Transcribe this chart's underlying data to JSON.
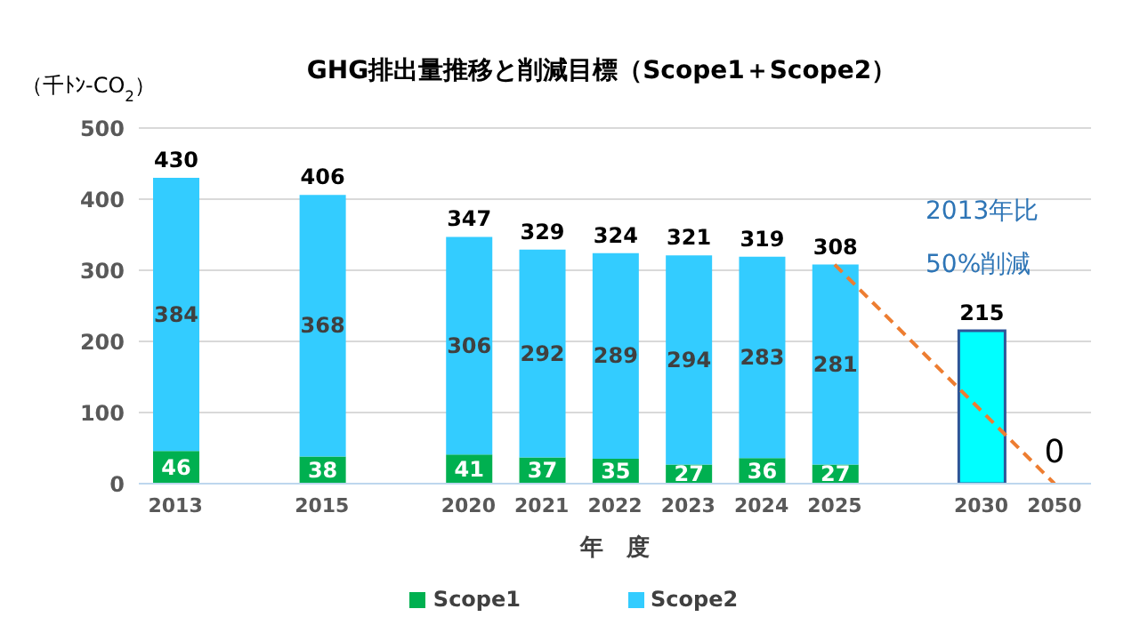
{
  "chart_data": {
    "type": "bar",
    "title": "GHG排出量推移と削減目標（Scope1＋Scope2）",
    "ylabel": "（千ﾄﾝ-CO$_{2}$）",
    "xlabel": "年　度",
    "categories": [
      "2013",
      null,
      "2015",
      null,
      "2020",
      "2021",
      "2022",
      "2023",
      "2024",
      "2025",
      null,
      "2030",
      "2050"
    ],
    "stacked": true,
    "series": [
      {
        "name": "Scope1",
        "color": "#00b050",
        "values": [
          46,
          null,
          38,
          null,
          41,
          37,
          35,
          27,
          36,
          27,
          null,
          null,
          null
        ]
      },
      {
        "name": "Scope2",
        "color": "#33ccff",
        "values": [
          384,
          null,
          368,
          null,
          306,
          292,
          289,
          294,
          283,
          281,
          null,
          null,
          null
        ]
      },
      {
        "color": "#00ffff",
        "values": [
          null,
          null,
          null,
          null,
          null,
          null,
          null,
          null,
          null,
          null,
          null,
          215,
          null
        ]
      },
      {
        "type": "line",
        "color": "#ed7d31",
        "values": [
          null,
          null,
          null,
          null,
          null,
          null,
          null,
          null,
          null,
          308,
          null,
          null,
          0
        ],
        "value_labels": [
          null,
          null,
          null,
          null,
          null,
          null,
          null,
          null,
          null,
          null,
          null,
          null,
          "0"
        ]
      }
    ],
    "totals": [
      "430",
      null,
      "406",
      null,
      "347",
      "329",
      "324",
      "321",
      "319",
      "308",
      null,
      null,
      null
    ],
    "data_labels": true,
    "line_style": "dashed",
    "ylim": [
      0,
      500
    ],
    "yticks": [
      0,
      100,
      200,
      300,
      400,
      500
    ],
    "grid": "y",
    "legend": "bottom",
    "annotations": [
      "2013年比\n50%削減"
    ]
  }
}
